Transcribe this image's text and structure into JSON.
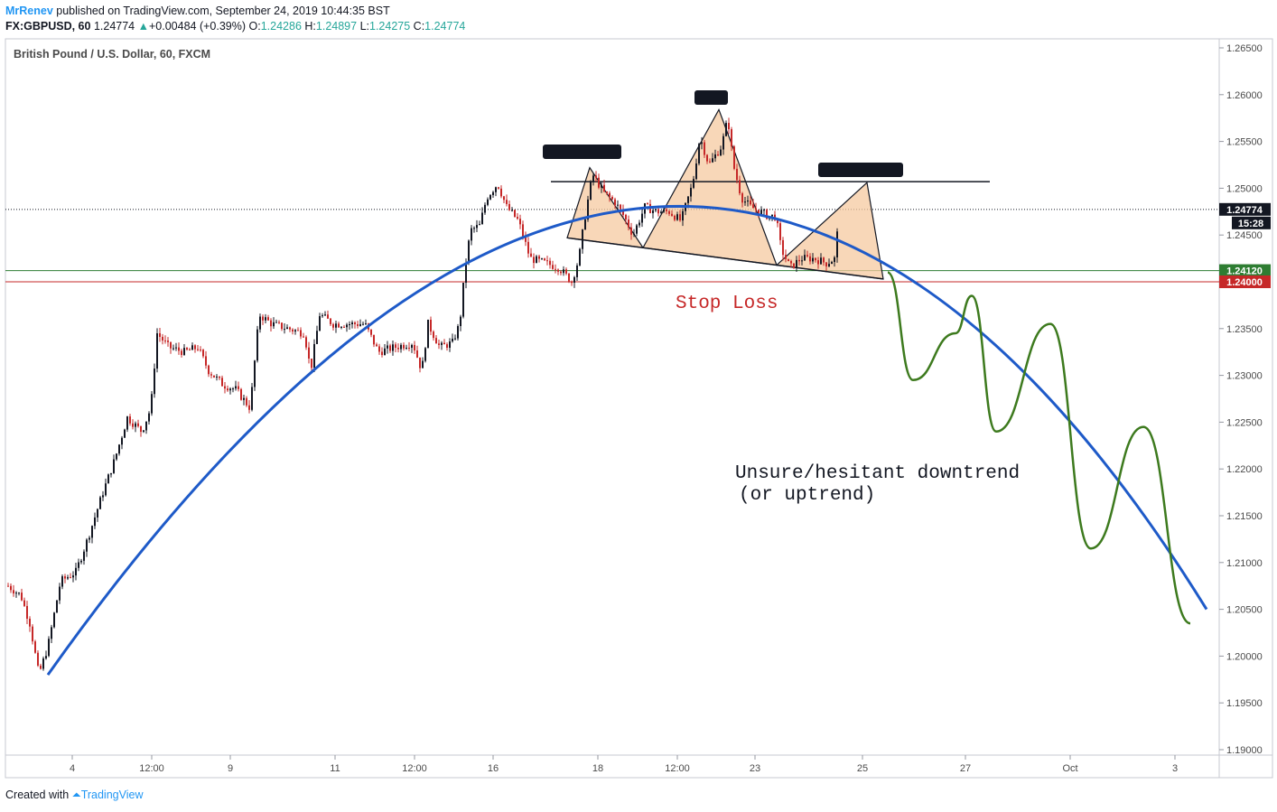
{
  "header": {
    "author": "MrRenev",
    "published": "published on TradingView.com, September 24, 2019 10:44:35 BST",
    "symbol": "FX:GBPUSD, 60",
    "last": "1.24774",
    "change": "+0.00484 (+0.39%)",
    "o_label": "O:",
    "o_value": "1.24286",
    "h_label": "H:",
    "h_value": "1.24897",
    "l_label": "L:",
    "l_value": "1.24275",
    "c_label": "C:",
    "c_value": "1.24774"
  },
  "footer": {
    "created_with": "Created with",
    "brand": "TradingView"
  },
  "colors": {
    "up": "#131722",
    "down": "#c62828",
    "curve": "#1e5ac8",
    "projection": "#3d7a1e",
    "pattern_fill": "#f5c9a0",
    "support_line": "#2e7d32",
    "stop_line": "#c62828",
    "label_box": "#131722"
  },
  "chart_data": {
    "type": "candlestick",
    "title": "British Pound / U.S. Dollar, 60, FXCM",
    "ylim": [
      1.19,
      1.265
    ],
    "y_ticks": [
      "1.26500",
      "1.26000",
      "1.25500",
      "1.25000",
      "1.24500",
      "1.24000",
      "1.23500",
      "1.23000",
      "1.22500",
      "1.22000",
      "1.21500",
      "1.21000",
      "1.20500",
      "1.20000",
      "1.19500",
      "1.19000"
    ],
    "x_ticks": [
      "4",
      "12:00",
      "9",
      "11",
      "12:00",
      "16",
      "18",
      "12:00",
      "23",
      "25",
      "27",
      "Oct",
      "3"
    ],
    "price_labels": [
      {
        "value": "1.24774",
        "time": "15:28"
      },
      {
        "value": "1.24120"
      },
      {
        "value": "1.24000"
      }
    ],
    "horizontal_lines": [
      {
        "name": "last-price",
        "price": 1.24774
      },
      {
        "name": "support",
        "price": 1.2412
      },
      {
        "name": "stop-loss",
        "price": 1.24
      }
    ],
    "candle_anchors": [
      [
        0,
        1.2075
      ],
      [
        14,
        1.2065
      ],
      [
        24,
        1.2035
      ],
      [
        34,
        1.198
      ],
      [
        44,
        1.201
      ],
      [
        58,
        1.208
      ],
      [
        75,
        1.209
      ],
      [
        88,
        1.2125
      ],
      [
        105,
        1.2175
      ],
      [
        118,
        1.221
      ],
      [
        132,
        1.2255
      ],
      [
        148,
        1.224
      ],
      [
        158,
        1.2265
      ],
      [
        165,
        1.2345
      ],
      [
        178,
        1.233
      ],
      [
        195,
        1.2325
      ],
      [
        210,
        1.233
      ],
      [
        222,
        1.2305
      ],
      [
        238,
        1.229
      ],
      [
        252,
        1.2285
      ],
      [
        268,
        1.2265
      ],
      [
        278,
        1.2365
      ],
      [
        292,
        1.2355
      ],
      [
        310,
        1.235
      ],
      [
        328,
        1.2345
      ],
      [
        335,
        1.2305
      ],
      [
        345,
        1.2365
      ],
      [
        360,
        1.2355
      ],
      [
        382,
        1.2355
      ],
      [
        395,
        1.2355
      ],
      [
        410,
        1.2325
      ],
      [
        428,
        1.233
      ],
      [
        448,
        1.2335
      ],
      [
        458,
        1.2305
      ],
      [
        465,
        1.2355
      ],
      [
        478,
        1.233
      ],
      [
        492,
        1.2335
      ],
      [
        500,
        1.2355
      ],
      [
        506,
        1.2415
      ],
      [
        512,
        1.2455
      ],
      [
        522,
        1.246
      ],
      [
        530,
        1.249
      ],
      [
        542,
        1.2505
      ],
      [
        552,
        1.248
      ],
      [
        565,
        1.2465
      ],
      [
        578,
        1.2425
      ],
      [
        595,
        1.242
      ],
      [
        610,
        1.2415
      ],
      [
        624,
        1.24
      ],
      [
        632,
        1.2425
      ],
      [
        638,
        1.2465
      ],
      [
        647,
        1.2515
      ],
      [
        660,
        1.2495
      ],
      [
        672,
        1.2485
      ],
      [
        682,
        1.247
      ],
      [
        692,
        1.245
      ],
      [
        705,
        1.248
      ],
      [
        718,
        1.2475
      ],
      [
        732,
        1.2475
      ],
      [
        745,
        1.2465
      ],
      [
        758,
        1.2505
      ],
      [
        766,
        1.2555
      ],
      [
        776,
        1.2525
      ],
      [
        790,
        1.2545
      ],
      [
        797,
        1.2575
      ],
      [
        803,
        1.2525
      ],
      [
        812,
        1.249
      ],
      [
        822,
        1.248
      ],
      [
        833,
        1.2475
      ],
      [
        842,
        1.247
      ],
      [
        850,
        1.247
      ],
      [
        856,
        1.2435
      ],
      [
        866,
        1.2415
      ],
      [
        878,
        1.2425
      ],
      [
        892,
        1.2425
      ],
      [
        906,
        1.242
      ],
      [
        916,
        1.2425
      ],
      [
        920,
        1.2477
      ]
    ],
    "arc_curve": [
      [
        45,
        1.198
      ],
      [
        720,
        1.248
      ],
      [
        1328,
        1.205
      ]
    ],
    "projection_path": [
      [
        975,
        1.241
      ],
      [
        1003,
        1.2295
      ],
      [
        1050,
        1.2345
      ],
      [
        1068,
        1.2385
      ],
      [
        1095,
        1.224
      ],
      [
        1155,
        1.2355
      ],
      [
        1200,
        1.2115
      ],
      [
        1258,
        1.2245
      ],
      [
        1310,
        1.2035
      ]
    ],
    "pattern": {
      "neckline": [
        [
          620,
          1.2447
        ],
        [
          970,
          1.2403
        ]
      ],
      "resistance": [
        [
          602,
          1.2507
        ],
        [
          1088,
          1.2507
        ]
      ],
      "left_shoulder_peak": [
        645,
        1.2522
      ],
      "head_peak": [
        788,
        1.2584
      ],
      "right_shoulder_peak": [
        952,
        1.2506
      ]
    },
    "annotations": [
      {
        "text": "Stop Loss"
      },
      {
        "text": "Unsure/hesitant downtrend"
      },
      {
        "text": "(or uptrend)"
      }
    ]
  }
}
